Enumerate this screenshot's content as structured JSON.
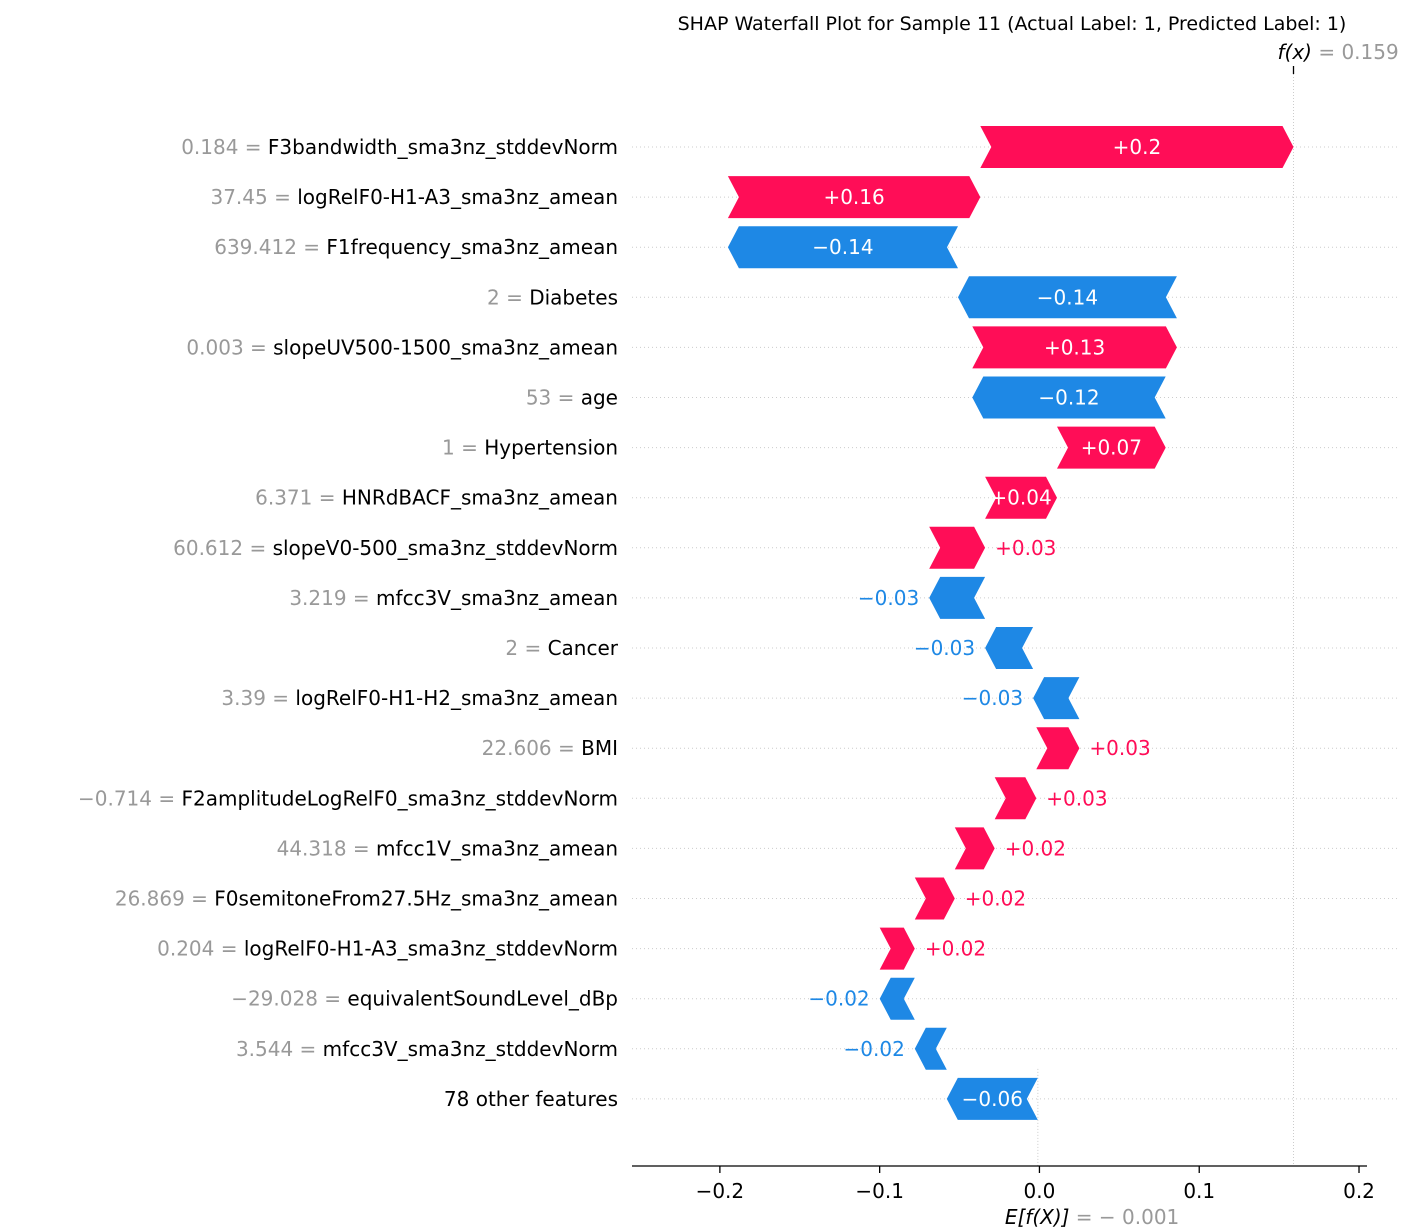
{
  "chart_data": {
    "type": "bar",
    "title": "SHAP Waterfall Plot for Sample 11 (Actual Label: 1, Predicted Label: 1)",
    "fx": {
      "label": "f(x)",
      "value_text": "= 0.159",
      "value": 0.159
    },
    "base": {
      "label": "E[f(X)]",
      "value_text": "= − 0.001",
      "value": -0.001
    },
    "xlim": [
      -0.255,
      0.205
    ],
    "xticks": [
      {
        "value": -0.2,
        "label": "−0.2"
      },
      {
        "value": -0.1,
        "label": "−0.1"
      },
      {
        "value": 0.0,
        "label": "0.0"
      },
      {
        "value": 0.1,
        "label": "0.1"
      },
      {
        "value": 0.2,
        "label": "0.2"
      }
    ],
    "colors": {
      "positive": "#ff0d57",
      "negative": "#1e88e5",
      "value_text": "#999999",
      "feature_text": "#000000"
    },
    "features": [
      {
        "value": "0.184 =",
        "name": "F3bandwidth_sma3nz_stddevNorm",
        "start": -0.037,
        "end": 0.159,
        "label": "+0.2"
      },
      {
        "value": "37.45 =",
        "name": "logRelF0-H1-A3_sma3nz_amean",
        "start": -0.195,
        "end": -0.037,
        "label": "+0.16"
      },
      {
        "value": "639.412 =",
        "name": "F1frequency_sma3nz_amean",
        "start": -0.051,
        "end": -0.195,
        "label": "−0.14"
      },
      {
        "value": "2 =",
        "name": "Diabetes",
        "start": 0.086,
        "end": -0.051,
        "label": "−0.14"
      },
      {
        "value": "0.003 =",
        "name": "slopeUV500-1500_sma3nz_amean",
        "start": -0.042,
        "end": 0.086,
        "label": "+0.13"
      },
      {
        "value": "53 =",
        "name": "age",
        "start": 0.079,
        "end": -0.042,
        "label": "−0.12"
      },
      {
        "value": "1 =",
        "name": "Hypertension",
        "start": 0.011,
        "end": 0.079,
        "label": "+0.07"
      },
      {
        "value": "6.371 =",
        "name": "HNRdBACF_sma3nz_amean",
        "start": -0.034,
        "end": 0.011,
        "label": "+0.04"
      },
      {
        "value": "60.612 =",
        "name": "slopeV0-500_sma3nz_stddevNorm",
        "start": -0.069,
        "end": -0.034,
        "label": "+0.03"
      },
      {
        "value": "3.219 =",
        "name": "mfcc3V_sma3nz_amean",
        "start": -0.034,
        "end": -0.069,
        "label": "−0.03"
      },
      {
        "value": "2 =",
        "name": "Cancer",
        "start": -0.004,
        "end": -0.034,
        "label": "−0.03"
      },
      {
        "value": "3.39 =",
        "name": "logRelF0-H1-H2_sma3nz_amean",
        "start": 0.025,
        "end": -0.004,
        "label": "−0.03"
      },
      {
        "value": "22.606 =",
        "name": "BMI",
        "start": -0.002,
        "end": 0.025,
        "label": "+0.03"
      },
      {
        "value": "−0.714 =",
        "name": "F2amplitudeLogRelF0_sma3nz_stddevNorm",
        "start": -0.028,
        "end": -0.002,
        "label": "+0.03"
      },
      {
        "value": "44.318 =",
        "name": "mfcc1V_sma3nz_amean",
        "start": -0.053,
        "end": -0.028,
        "label": "+0.02"
      },
      {
        "value": "26.869 =",
        "name": "F0semitoneFrom27.5Hz_sma3nz_amean",
        "start": -0.078,
        "end": -0.053,
        "label": "+0.02"
      },
      {
        "value": "0.204 =",
        "name": "logRelF0-H1-A3_sma3nz_stddevNorm",
        "start": -0.1,
        "end": -0.078,
        "label": "+0.02"
      },
      {
        "value": "−29.028 =",
        "name": "equivalentSoundLevel_dBp",
        "start": -0.078,
        "end": -0.1,
        "label": "−0.02"
      },
      {
        "value": "3.544 =",
        "name": "mfcc3V_sma3nz_stddevNorm",
        "start": -0.058,
        "end": -0.078,
        "label": "−0.02"
      },
      {
        "value": "",
        "name": "78 other features",
        "start": -0.001,
        "end": -0.058,
        "label": "−0.06"
      }
    ]
  }
}
